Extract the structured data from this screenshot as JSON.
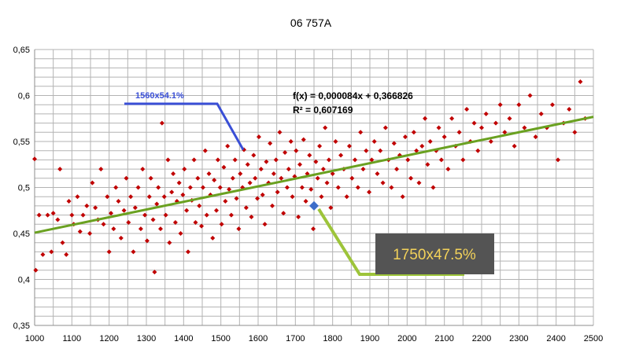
{
  "chart_data": {
    "type": "scatter",
    "title": "06 757A",
    "xlabel": "",
    "ylabel": "",
    "xlim": [
      1000,
      2500
    ],
    "ylim": [
      0.35,
      0.65
    ],
    "x_ticks": [
      "1000",
      "1100",
      "1200",
      "1300",
      "1400",
      "1500",
      "1600",
      "1700",
      "1800",
      "1900",
      "2000",
      "2100",
      "2200",
      "2300",
      "2400",
      "2500"
    ],
    "y_ticks": [
      "0,35",
      "0,4",
      "0,45",
      "0,5",
      "0,55",
      "0,6",
      "0,65"
    ],
    "grid": true,
    "colors": {
      "points": "#c00000",
      "trendline": "#6aa121",
      "highlight": "#3d6ec9",
      "annotation_blue": "#3a4fd6",
      "annotation_green": "#9dc43a",
      "box_fill": "#545454",
      "box_text": "#f3d25a"
    },
    "trendline": {
      "slope": 8.4e-05,
      "intercept": 0.366826,
      "equation": "f(x) = 0,000084x + 0,366826",
      "r_squared": "R² = 0,607169"
    },
    "highlight_point": {
      "x": 1750,
      "y": 0.48
    },
    "annotations": {
      "blue_label": "1560x54.1%",
      "blue_target": {
        "x": 1560,
        "y": 0.541
      },
      "box_label": "1750x47.5%"
    },
    "series": [
      {
        "points": [
          [
            1000,
            0.531
          ],
          [
            1003,
            0.41
          ],
          [
            1012,
            0.47
          ],
          [
            1022,
            0.427
          ],
          [
            1035,
            0.47
          ],
          [
            1045,
            0.43
          ],
          [
            1050,
            0.472
          ],
          [
            1062,
            0.465
          ],
          [
            1068,
            0.52
          ],
          [
            1075,
            0.44
          ],
          [
            1085,
            0.427
          ],
          [
            1092,
            0.485
          ],
          [
            1100,
            0.47
          ],
          [
            1105,
            0.46
          ],
          [
            1115,
            0.49
          ],
          [
            1122,
            0.452
          ],
          [
            1130,
            0.47
          ],
          [
            1140,
            0.48
          ],
          [
            1148,
            0.45
          ],
          [
            1155,
            0.505
          ],
          [
            1163,
            0.478
          ],
          [
            1170,
            0.465
          ],
          [
            1178,
            0.52
          ],
          [
            1185,
            0.46
          ],
          [
            1195,
            0.49
          ],
          [
            1200,
            0.43
          ],
          [
            1205,
            0.472
          ],
          [
            1212,
            0.455
          ],
          [
            1218,
            0.5
          ],
          [
            1225,
            0.485
          ],
          [
            1232,
            0.445
          ],
          [
            1240,
            0.475
          ],
          [
            1246,
            0.51
          ],
          [
            1252,
            0.462
          ],
          [
            1258,
            0.49
          ],
          [
            1265,
            0.43
          ],
          [
            1270,
            0.478
          ],
          [
            1278,
            0.5
          ],
          [
            1285,
            0.455
          ],
          [
            1290,
            0.52
          ],
          [
            1296,
            0.47
          ],
          [
            1302,
            0.442
          ],
          [
            1308,
            0.49
          ],
          [
            1312,
            0.51
          ],
          [
            1318,
            0.465
          ],
          [
            1322,
            0.408
          ],
          [
            1328,
            0.482
          ],
          [
            1332,
            0.5
          ],
          [
            1338,
            0.455
          ],
          [
            1342,
            0.57
          ],
          [
            1348,
            0.49
          ],
          [
            1352,
            0.47
          ],
          [
            1358,
            0.53
          ],
          [
            1362,
            0.44
          ],
          [
            1368,
            0.495
          ],
          [
            1372,
            0.515
          ],
          [
            1378,
            0.462
          ],
          [
            1382,
            0.485
          ],
          [
            1388,
            0.505
          ],
          [
            1392,
            0.45
          ],
          [
            1398,
            0.492
          ],
          [
            1402,
            0.52
          ],
          [
            1408,
            0.475
          ],
          [
            1412,
            0.43
          ],
          [
            1418,
            0.5
          ],
          [
            1422,
            0.486
          ],
          [
            1428,
            0.53
          ],
          [
            1432,
            0.462
          ],
          [
            1438,
            0.51
          ],
          [
            1442,
            0.48
          ],
          [
            1448,
            0.458
          ],
          [
            1452,
            0.5
          ],
          [
            1458,
            0.54
          ],
          [
            1462,
            0.47
          ],
          [
            1468,
            0.515
          ],
          [
            1472,
            0.492
          ],
          [
            1478,
            0.445
          ],
          [
            1482,
            0.508
          ],
          [
            1488,
            0.475
          ],
          [
            1492,
            0.53
          ],
          [
            1498,
            0.5
          ],
          [
            1502,
            0.46
          ],
          [
            1508,
            0.522
          ],
          [
            1512,
            0.485
          ],
          [
            1518,
            0.545
          ],
          [
            1522,
            0.498
          ],
          [
            1528,
            0.47
          ],
          [
            1532,
            0.51
          ],
          [
            1538,
            0.53
          ],
          [
            1542,
            0.488
          ],
          [
            1548,
            0.455
          ],
          [
            1552,
            0.515
          ],
          [
            1558,
            0.5
          ],
          [
            1562,
            0.541
          ],
          [
            1568,
            0.478
          ],
          [
            1572,
            0.525
          ],
          [
            1578,
            0.505
          ],
          [
            1582,
            0.468
          ],
          [
            1588,
            0.535
          ],
          [
            1592,
            0.51
          ],
          [
            1598,
            0.488
          ],
          [
            1602,
            0.555
          ],
          [
            1608,
            0.52
          ],
          [
            1612,
            0.492
          ],
          [
            1618,
            0.46
          ],
          [
            1622,
            0.528
          ],
          [
            1628,
            0.505
          ],
          [
            1632,
            0.548
          ],
          [
            1638,
            0.48
          ],
          [
            1642,
            0.515
          ],
          [
            1648,
            0.53
          ],
          [
            1652,
            0.495
          ],
          [
            1658,
            0.56
          ],
          [
            1662,
            0.51
          ],
          [
            1668,
            0.472
          ],
          [
            1672,
            0.538
          ],
          [
            1678,
            0.5
          ],
          [
            1682,
            0.52
          ],
          [
            1688,
            0.55
          ],
          [
            1692,
            0.49
          ],
          [
            1698,
            0.512
          ],
          [
            1702,
            0.54
          ],
          [
            1708,
            0.468
          ],
          [
            1712,
            0.525
          ],
          [
            1718,
            0.5
          ],
          [
            1722,
            0.552
          ],
          [
            1728,
            0.485
          ],
          [
            1732,
            0.515
          ],
          [
            1738,
            0.535
          ],
          [
            1742,
            0.498
          ],
          [
            1748,
            0.455
          ],
          [
            1755,
            0.528
          ],
          [
            1760,
            0.51
          ],
          [
            1765,
            0.545
          ],
          [
            1770,
            0.49
          ],
          [
            1775,
            0.52
          ],
          [
            1780,
            0.565
          ],
          [
            1785,
            0.505
          ],
          [
            1790,
            0.53
          ],
          [
            1795,
            0.478
          ],
          [
            1800,
            0.515
          ],
          [
            1808,
            0.55
          ],
          [
            1815,
            0.5
          ],
          [
            1822,
            0.535
          ],
          [
            1830,
            0.52
          ],
          [
            1838,
            0.49
          ],
          [
            1845,
            0.545
          ],
          [
            1852,
            0.51
          ],
          [
            1860,
            0.53
          ],
          [
            1868,
            0.5
          ],
          [
            1875,
            0.56
          ],
          [
            1882,
            0.52
          ],
          [
            1890,
            0.54
          ],
          [
            1898,
            0.495
          ],
          [
            1905,
            0.53
          ],
          [
            1912,
            0.55
          ],
          [
            1920,
            0.515
          ],
          [
            1928,
            0.54
          ],
          [
            1935,
            0.505
          ],
          [
            1942,
            0.565
          ],
          [
            1950,
            0.53
          ],
          [
            1958,
            0.5
          ],
          [
            1965,
            0.548
          ],
          [
            1972,
            0.52
          ],
          [
            1980,
            0.535
          ],
          [
            1988,
            0.49
          ],
          [
            1995,
            0.555
          ],
          [
            2002,
            0.53
          ],
          [
            2010,
            0.51
          ],
          [
            2018,
            0.56
          ],
          [
            2025,
            0.54
          ],
          [
            2032,
            0.505
          ],
          [
            2040,
            0.545
          ],
          [
            2048,
            0.575
          ],
          [
            2055,
            0.525
          ],
          [
            2062,
            0.55
          ],
          [
            2070,
            0.5
          ],
          [
            2078,
            0.54
          ],
          [
            2085,
            0.565
          ],
          [
            2092,
            0.53
          ],
          [
            2100,
            0.555
          ],
          [
            2110,
            0.52
          ],
          [
            2120,
            0.575
          ],
          [
            2130,
            0.545
          ],
          [
            2140,
            0.56
          ],
          [
            2150,
            0.53
          ],
          [
            2160,
            0.585
          ],
          [
            2170,
            0.55
          ],
          [
            2180,
            0.57
          ],
          [
            2190,
            0.54
          ],
          [
            2200,
            0.565
          ],
          [
            2212,
            0.58
          ],
          [
            2225,
            0.55
          ],
          [
            2238,
            0.57
          ],
          [
            2250,
            0.59
          ],
          [
            2262,
            0.56
          ],
          [
            2275,
            0.575
          ],
          [
            2288,
            0.545
          ],
          [
            2300,
            0.59
          ],
          [
            2315,
            0.565
          ],
          [
            2330,
            0.6
          ],
          [
            2345,
            0.555
          ],
          [
            2360,
            0.58
          ],
          [
            2375,
            0.565
          ],
          [
            2390,
            0.59
          ],
          [
            2405,
            0.53
          ],
          [
            2420,
            0.57
          ],
          [
            2435,
            0.585
          ],
          [
            2450,
            0.56
          ],
          [
            2465,
            0.615
          ],
          [
            2478,
            0.575
          ]
        ]
      }
    ]
  }
}
